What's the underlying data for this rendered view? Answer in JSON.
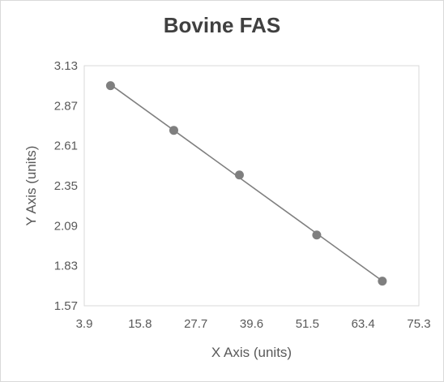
{
  "chart_data": {
    "type": "scatter",
    "title": "Bovine FAS",
    "xlabel": "X Axis (units)",
    "ylabel": "Y Axis (units)",
    "xlim": [
      3.9,
      75.3
    ],
    "ylim": [
      1.57,
      3.13
    ],
    "x_ticks": [
      "3.9",
      "15.8",
      "27.7",
      "39.6",
      "51.5",
      "63.4",
      "75.3"
    ],
    "y_ticks": [
      "3.13",
      "2.87",
      "2.61",
      "2.35",
      "2.09",
      "1.83",
      "1.57"
    ],
    "grid": false,
    "legend": "none",
    "trendline": "linear",
    "series": [
      {
        "x": [
          9.5,
          23.0,
          37.0,
          53.5,
          67.5
        ],
        "y": [
          3.0,
          2.71,
          2.42,
          2.03,
          1.73
        ]
      }
    ],
    "colors": {
      "marker": "#7f7f7f",
      "line": "#7f7f7f",
      "plot_border": "#d9d9d9",
      "text": "#595959",
      "title": "#404040"
    }
  }
}
